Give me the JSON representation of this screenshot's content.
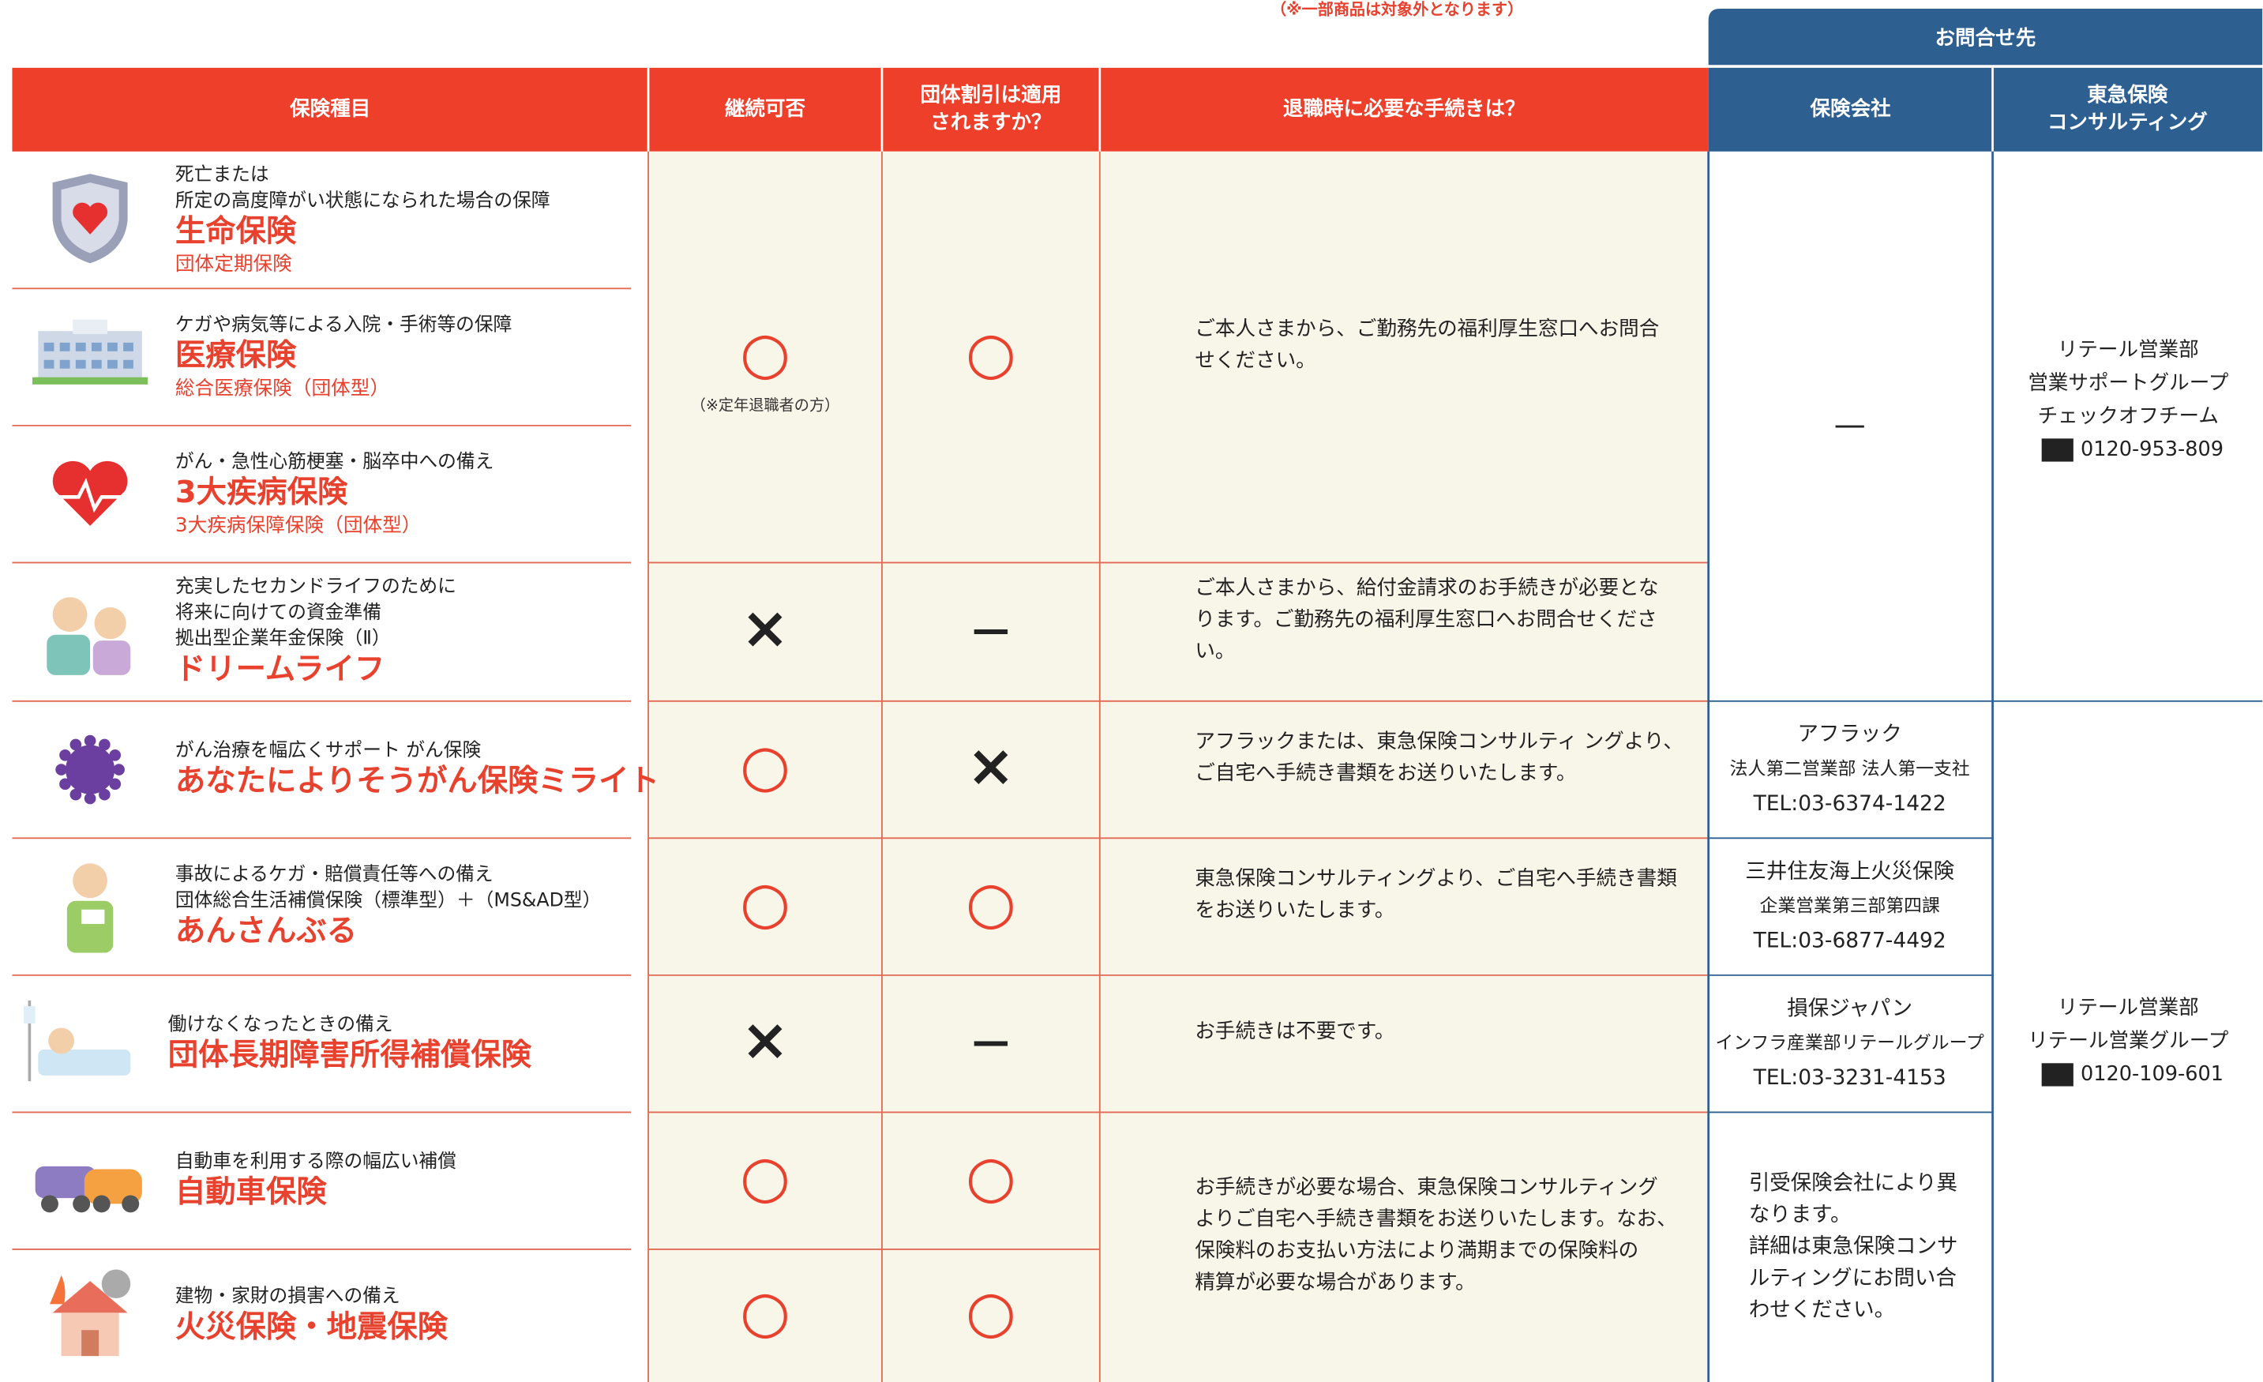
{
  "note": "（※一部商品は対象外となります）",
  "contact_header": "お問合せ先",
  "headers": [
    [
      "保険種目"
    ],
    [
      "継続可否"
    ],
    [
      "団体割引は適用",
      "されますか？"
    ],
    [
      "退職時に必要な手続きは？"
    ],
    [
      "保険会社"
    ],
    [
      "東急保険",
      "コンサルティング"
    ]
  ],
  "products": [
    {
      "description": [
        "死亡または",
        "所定の高度障がい状態になられた場合の保障"
      ],
      "name": "生命保険",
      "subname": "団体定期保険"
    },
    {
      "description": [
        "ケガや病気等による入院・手術等の保障"
      ],
      "name": "医療保険",
      "subname": "総合医療保険（団体型）"
    },
    {
      "description": [
        "がん・急性心筋梗塞・脳卒中への備え"
      ],
      "name": "3大疾病保険",
      "subname": "3大疾病保障保険（団体型）"
    },
    {
      "description": [
        "充実したセカンドライフのために",
        "将来に向けての資金準備",
        "拠出型企業年金保険（Ⅱ）"
      ],
      "name": "ドリームライフ"
    },
    {
      "description": [
        "がん治療を幅広くサポート がん保険"
      ],
      "name": "あなたによりそうがん保険ミライト"
    },
    {
      "description": [
        "事故によるケガ・賠償責任等への備え",
        "団体総合生活補償保険（標準型）＋（MS&AD型）"
      ],
      "name": "あんさんぶる"
    },
    {
      "description": [
        "働けなくなったときの備え"
      ],
      "name": "団体長期障害所得補償保険"
    },
    {
      "description": [
        "自動車を利用する際の幅広い補償"
      ],
      "name": "自動車保険"
    },
    {
      "description": [
        "建物・家財の損害への備え"
      ],
      "name": "火災保険・地震保険"
    }
  ],
  "continuation": [
    {
      "mark": "○",
      "note": "（※定年退職者の方）"
    },
    {
      "mark": "×"
    },
    {
      "mark": "○"
    },
    {
      "mark": "○"
    },
    {
      "mark": "×"
    },
    {
      "mark": "○"
    },
    {
      "mark": "○"
    }
  ],
  "discount": [
    {
      "mark": "○"
    },
    {
      "mark": "—"
    },
    {
      "mark": "×"
    },
    {
      "mark": "○"
    },
    {
      "mark": "—"
    },
    {
      "mark": "○"
    },
    {
      "mark": "○"
    }
  ],
  "procedures": [
    {
      "lines": [
        "ご本人さまから、ご勤務先の福利厚生窓口へお問合",
        "せください。"
      ]
    },
    {
      "lines": [
        "ご本人さまから、給付金請求のお手続きが必要とな",
        "ります。ご勤務先の福利厚生窓口へお問合せくださ",
        "い。"
      ]
    },
    {
      "lines": [
        "アフラックまたは、東急保険コンサルティ ングより、",
        "ご自宅へ手続き書類をお送りいたします。"
      ]
    },
    {
      "lines": [
        "東急保険コンサルティングより、ご自宅へ手続き書類",
        "をお送りいたします。"
      ]
    },
    {
      "lines": [
        "お手続きは不要です。"
      ]
    },
    {
      "lines": [
        "お手続きが必要な場合、東急保険コンサルティング",
        "よりご自宅へ手続き書類をお送りいたします。なお、",
        "保険料のお支払い方法により満期までの保険料の",
        "精算が必要な場合があります。"
      ]
    }
  ],
  "companies": [
    {
      "lines": [
        "—"
      ]
    },
    {
      "lines": [
        "アフラック",
        "法人第二営業部 法人第一支社",
        "TEL:03-6374-1422"
      ]
    },
    {
      "lines": [
        "三井住友海上火災保険",
        "企業営業第三部第四課",
        "TEL:03-6877-4492"
      ]
    },
    {
      "lines": [
        "損保ジャパン",
        "インフラ産業部リテールグループ",
        "TEL:03-3231-4153"
      ]
    },
    {
      "lines": [
        "引受保険会社により異",
        "なります。",
        "詳細は東急保険コンサ",
        "ルティングにお問い合",
        "わせください。"
      ]
    }
  ],
  "tokyu": [
    {
      "lines": [
        "リテール営業部",
        "営業サポートグループ",
        "チェックオフチーム"
      ],
      "phone": "0120-953-809"
    },
    {
      "lines": [
        "リテール営業部",
        "リテール営業グループ"
      ],
      "phone": "0120-109-601"
    }
  ]
}
